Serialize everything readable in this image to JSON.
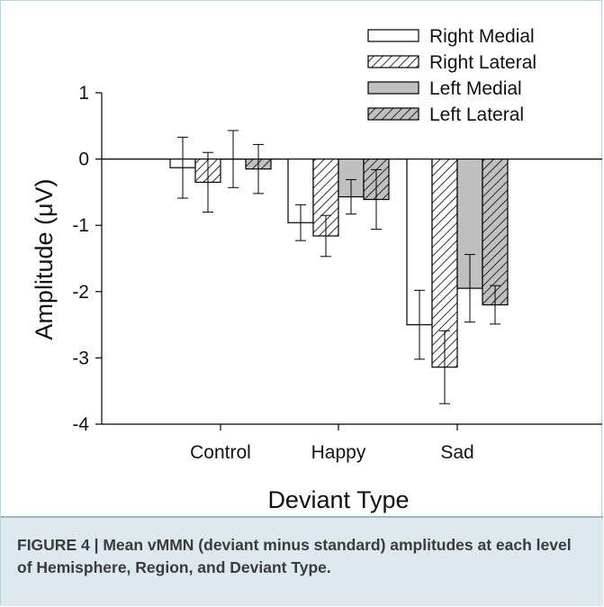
{
  "chart_data": {
    "type": "bar",
    "title": "",
    "xlabel": "Deviant Type",
    "ylabel": "Amplitude (μV)",
    "ylim": [
      -4,
      1
    ],
    "yticks": [
      1,
      0,
      -1,
      -2,
      -3,
      -4
    ],
    "ytick_labels": [
      "1",
      "0",
      "-1",
      "-2",
      "-3",
      "-4"
    ],
    "categories": [
      "Control",
      "Happy",
      "Sad"
    ],
    "series": [
      {
        "name": "Right Medial",
        "values": [
          -0.13,
          -0.96,
          -2.5
        ],
        "error": [
          0.46,
          0.27,
          0.52
        ],
        "fill": "#ffffff",
        "pattern": "none"
      },
      {
        "name": "Right Lateral",
        "values": [
          -0.35,
          -1.16,
          -3.14
        ],
        "error": [
          0.45,
          0.31,
          0.55
        ],
        "fill": "#ffffff",
        "pattern": "hatch"
      },
      {
        "name": "Left Medial",
        "values": [
          0.0,
          -0.57,
          -1.95
        ],
        "error": [
          0.43,
          0.26,
          0.51
        ],
        "fill": "#c0c0c0",
        "pattern": "none"
      },
      {
        "name": "Left Lateral",
        "values": [
          -0.15,
          -0.61,
          -2.2
        ],
        "error": [
          0.37,
          0.45,
          0.29
        ],
        "fill": "#c0c0c0",
        "pattern": "hatch"
      }
    ],
    "legend_position": "top-right",
    "grid": false
  },
  "caption": "FIGURE 4 | Mean vMMN (deviant minus standard) amplitudes at each level of Hemisphere, Region, and Deviant Type."
}
